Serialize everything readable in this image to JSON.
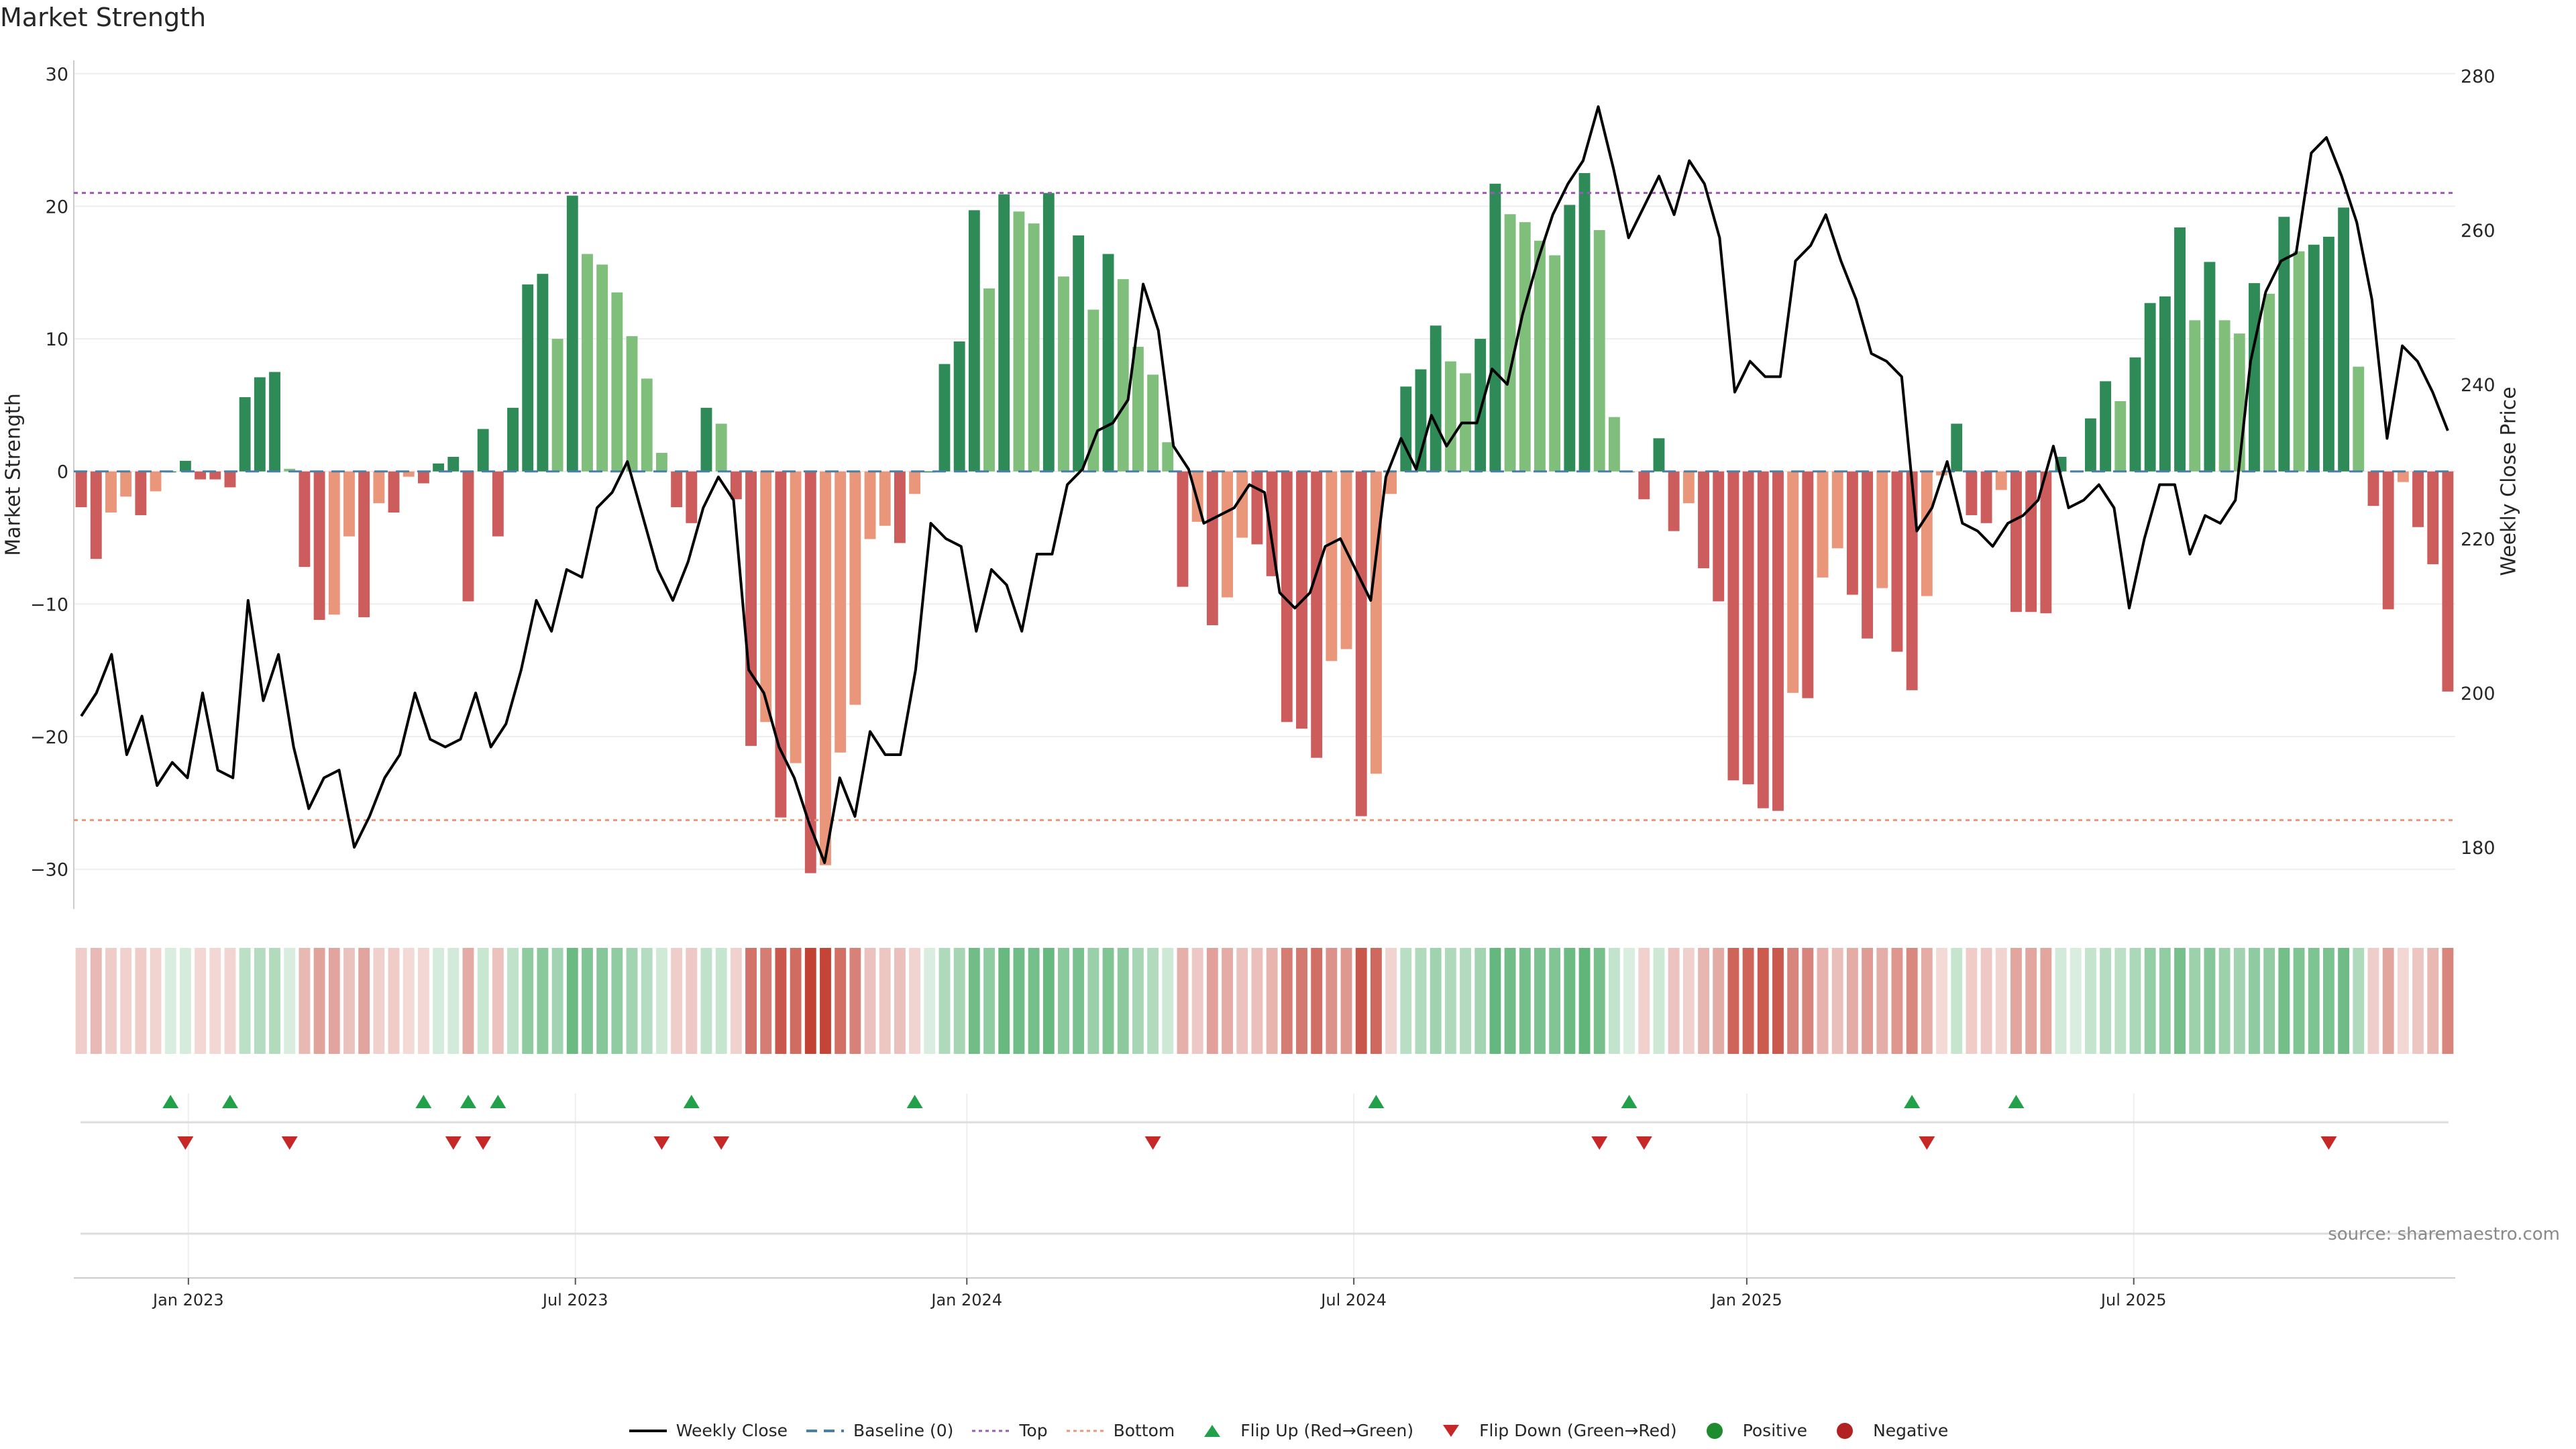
{
  "chart_data": {
    "type": "bar",
    "title": "Market Strength",
    "ylabel": "Market Strength",
    "y2label": "Weekly Close Price",
    "ylim": [
      -33,
      31
    ],
    "y2lim": [
      172,
      282
    ],
    "yticks": [
      -30,
      -20,
      -10,
      0,
      10,
      20,
      30
    ],
    "y2ticks": [
      180,
      200,
      220,
      240,
      260,
      280
    ],
    "top_line": 21,
    "bottom_line": -26.3,
    "baseline": 0,
    "x_date_ticks": [
      "Jan 2023",
      "Jul 2023",
      "Jan 2024",
      "Jul 2024",
      "Jan 2025",
      "Jul 2025"
    ],
    "x_tick_week_index": [
      7.7,
      33.7,
      60,
      86,
      112.4,
      138.4
    ],
    "strength": [
      -2.7,
      -6.6,
      -3.1,
      -1.9,
      -3.3,
      -1.5,
      0,
      0.8,
      -0.6,
      -0.6,
      -1.2,
      5.6,
      7.1,
      7.5,
      0.2,
      -7.2,
      -11.2,
      -10.8,
      -4.9,
      -11,
      -2.4,
      -3.1,
      -0.4,
      -0.9,
      0.6,
      1.1,
      -9.8,
      3.2,
      -4.9,
      4.8,
      14.1,
      14.9,
      10,
      20.8,
      16.4,
      15.6,
      13.5,
      10.2,
      7,
      1.4,
      -2.7,
      -3.9,
      4.8,
      3.6,
      -2.1,
      -20.7,
      -18.9,
      -26.1,
      -22,
      -30.3,
      -29.7,
      -21.2,
      -17.6,
      -5.1,
      -4.1,
      -5.4,
      -1.7,
      0,
      8.1,
      9.8,
      19.7,
      13.8,
      20.9,
      19.6,
      18.7,
      21,
      14.7,
      17.8,
      12.2,
      16.4,
      14.5,
      9.4,
      7.3,
      2.2,
      -8.7,
      -3.8,
      -11.6,
      -9.5,
      -5,
      -5.5,
      -7.9,
      -18.9,
      -19.4,
      -21.6,
      -14.3,
      -13.4,
      -26,
      -22.8,
      -1.7,
      6.4,
      7.7,
      11,
      8.3,
      7.4,
      10,
      21.7,
      19.4,
      18.8,
      17.4,
      16.3,
      20.1,
      22.5,
      18.2,
      4.1,
      0,
      -2.1,
      2.5,
      -4.5,
      -2.4,
      -7.3,
      -9.8,
      -23.3,
      -23.6,
      -25.4,
      -25.6,
      -16.7,
      -17.1,
      -8,
      -5.8,
      -9.3,
      -12.6,
      -8.8,
      -13.6,
      -16.5,
      -9.4,
      -0.3,
      3.6,
      -3.3,
      -3.9,
      -1.4,
      -10.6,
      -10.6,
      -10.7,
      1.1,
      0,
      4,
      6.8,
      5.3,
      8.6,
      12.7,
      13.2,
      18.4,
      11.4,
      15.8,
      11.4,
      10.4,
      14.2,
      13.4,
      19.2,
      16.6,
      17.1,
      17.7,
      19.9,
      7.9,
      -2.6,
      -10.4,
      -0.8,
      -4.2,
      -7,
      -16.6
    ],
    "weekly_close": [
      197,
      200,
      205,
      192,
      197,
      188,
      191,
      189,
      200,
      190,
      189,
      212,
      199,
      205,
      193,
      185,
      189,
      190,
      180,
      184,
      189,
      192,
      200,
      194,
      193,
      194,
      200,
      193,
      196,
      203,
      212,
      208,
      216,
      215,
      224,
      226,
      230,
      223,
      216,
      212,
      217,
      224,
      228,
      225,
      203,
      200,
      193,
      189,
      183,
      178,
      189,
      184,
      195,
      192,
      192,
      203,
      222,
      220,
      219,
      208,
      216,
      214,
      208,
      218,
      218,
      227,
      229,
      234,
      235,
      238,
      253,
      247,
      232,
      229,
      222,
      223,
      224,
      227,
      226,
      213,
      211,
      213,
      219,
      220,
      216,
      212,
      228,
      233,
      229,
      236,
      232,
      235,
      235,
      242,
      240,
      249,
      256,
      262,
      266,
      269,
      276,
      268,
      259,
      263,
      267,
      262,
      269,
      266,
      259,
      239,
      243,
      241,
      241,
      256,
      258,
      262,
      256,
      251,
      244,
      243,
      241,
      221,
      224,
      230,
      222,
      221,
      219,
      222,
      223,
      225,
      232,
      224,
      225,
      227,
      224,
      211,
      220,
      227,
      227,
      218,
      223,
      222,
      225,
      243,
      252,
      256,
      257,
      270,
      272,
      267,
      261,
      251,
      233,
      245,
      243,
      239,
      234
    ],
    "strength_colors": {
      "positive_strong": "#2e8b57",
      "positive_weak": "#7fbf7b",
      "negative_strong": "#cd5c5c",
      "negative_weak": "#e9967a"
    },
    "heat_colors": {
      "positive": "#2e9e4f",
      "negative": "#c0392b"
    },
    "flip_up_weeks": [
      6,
      10,
      23,
      26,
      28,
      41,
      56,
      87,
      104,
      123,
      130
    ],
    "flip_down_weeks": [
      7,
      14,
      25,
      27,
      39,
      43,
      72,
      102,
      105,
      124,
      151
    ],
    "legend": [
      {
        "label": "Weekly Close",
        "kind": "line",
        "color": "#000000"
      },
      {
        "label": "Baseline (0)",
        "kind": "dashed",
        "color": "#4a7fa8"
      },
      {
        "label": "Top",
        "kind": "dotted",
        "color": "#9b59b6"
      },
      {
        "label": "Bottom",
        "kind": "dotted",
        "color": "#e9967a"
      },
      {
        "label": "Flip Up (Red→Green)",
        "kind": "tri-up",
        "color": "#22a14a"
      },
      {
        "label": "Flip Down (Green→Red)",
        "kind": "tri-down",
        "color": "#c62828"
      },
      {
        "label": "Positive",
        "kind": "dot",
        "color": "#1e8c2e"
      },
      {
        "label": "Negative",
        "kind": "dot",
        "color": "#b22222"
      }
    ]
  },
  "source_text": "source: sharemaestro.com"
}
